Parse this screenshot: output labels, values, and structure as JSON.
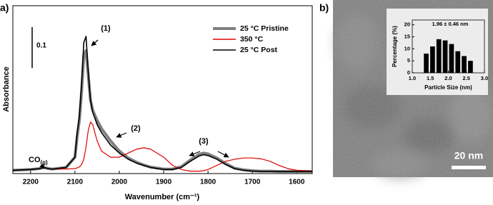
{
  "panel_labels": [
    "a)",
    "b)"
  ],
  "chart_data": [
    {
      "type": "line",
      "y_label": "Absorbance",
      "x_label": "Wavenumber (cm⁻¹)",
      "xlim": [
        2240,
        1565
      ],
      "ylim": [
        0,
        0.41
      ],
      "xticks": [
        2200,
        2100,
        2000,
        1900,
        1800,
        1700,
        1600
      ],
      "scale_bar": 0.1,
      "legend": "top-right",
      "x": [
        2240,
        2200,
        2180,
        2170,
        2160,
        2150,
        2120,
        2100,
        2095,
        2090,
        2085,
        2080,
        2075,
        2070,
        2065,
        2060,
        2050,
        2040,
        2020,
        2000,
        1980,
        1960,
        1945,
        1930,
        1900,
        1880,
        1860,
        1840,
        1820,
        1810,
        1800,
        1780,
        1760,
        1740,
        1720,
        1700,
        1680,
        1660,
        1640,
        1620,
        1600,
        1565
      ],
      "series": [
        {
          "name": "25 °C Pristine",
          "color": "#7f7f7f",
          "values": [
            0.008,
            0.01,
            0.012,
            0.015,
            0.012,
            0.011,
            0.015,
            0.04,
            0.09,
            0.13,
            0.2,
            0.29,
            0.3,
            0.24,
            0.18,
            0.155,
            0.13,
            0.11,
            0.08,
            0.055,
            0.038,
            0.027,
            0.021,
            0.016,
            0.011,
            0.011,
            0.017,
            0.033,
            0.047,
            0.05,
            0.048,
            0.038,
            0.024,
            0.013,
            0.009,
            0.007,
            0.006,
            0.006,
            0.005,
            0.005,
            0.005,
            0.005
          ]
        },
        {
          "name": "350 °C",
          "color": "#e00000",
          "values": [
            0.008,
            0.01,
            0.012,
            0.015,
            0.012,
            0.011,
            0.011,
            0.012,
            0.014,
            0.016,
            0.022,
            0.035,
            0.065,
            0.105,
            0.126,
            0.12,
            0.08,
            0.055,
            0.04,
            0.04,
            0.05,
            0.06,
            0.063,
            0.06,
            0.04,
            0.02,
            0.01,
            0.006,
            0.006,
            0.007,
            0.01,
            0.02,
            0.03,
            0.035,
            0.038,
            0.038,
            0.036,
            0.03,
            0.02,
            0.012,
            0.008,
            0.006
          ]
        },
        {
          "name": "25 °C Post",
          "color": "#000000",
          "values": [
            0.008,
            0.01,
            0.012,
            0.015,
            0.012,
            0.011,
            0.015,
            0.04,
            0.1,
            0.14,
            0.22,
            0.32,
            0.335,
            0.25,
            0.18,
            0.15,
            0.12,
            0.1,
            0.07,
            0.05,
            0.035,
            0.025,
            0.02,
            0.015,
            0.01,
            0.01,
            0.015,
            0.03,
            0.043,
            0.046,
            0.044,
            0.035,
            0.022,
            0.012,
            0.008,
            0.006,
            0.005,
            0.005,
            0.005,
            0.005,
            0.005,
            0.005
          ]
        }
      ],
      "annotations": [
        {
          "text": "(1)"
        },
        {
          "text": "(2)"
        },
        {
          "text": "(3)"
        },
        {
          "text": "CO",
          "subscript": "(g)"
        }
      ]
    },
    {
      "type": "histogram",
      "title": "1.96 ± 0.46 nm",
      "y_label": "Percentage (%)",
      "x_label": "Particle Size (nm)",
      "color": "#000000",
      "bins": [
        1.3,
        1.475,
        1.65,
        1.825,
        2.0,
        2.175,
        2.35,
        2.525,
        2.7
      ],
      "values": [
        8,
        11,
        14,
        13.5,
        12,
        9,
        7,
        5
      ],
      "xlim": [
        1.0,
        3.0
      ],
      "ylim": [
        0,
        22
      ],
      "xticks": [
        {
          "value": 1.0,
          "label": "1.0"
        },
        {
          "value": 1.5,
          "label": "1.5"
        },
        {
          "value": 2.0,
          "label": "2.0"
        },
        {
          "value": 2.5,
          "label": "2.5"
        },
        {
          "value": 3.0,
          "label": "3.0"
        }
      ],
      "yticks": [
        0,
        5,
        10,
        15,
        20
      ]
    }
  ],
  "image": {
    "scale_bar": "20 nm"
  }
}
